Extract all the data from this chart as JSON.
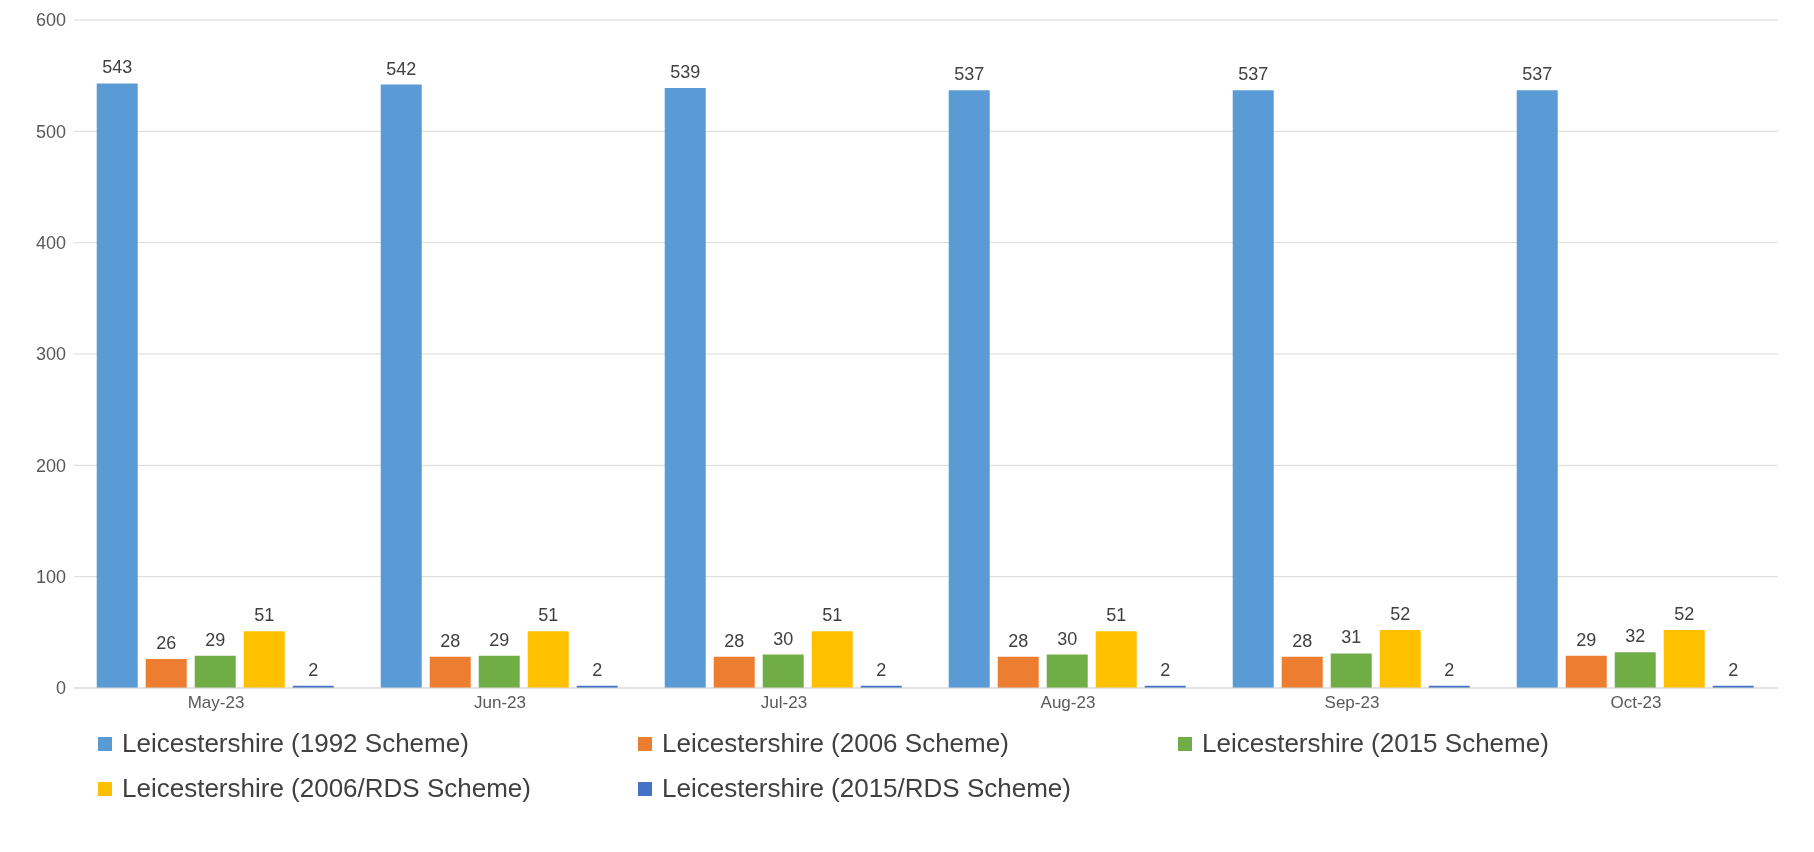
{
  "chart_data": {
    "type": "bar",
    "categories": [
      "May-23",
      "Jun-23",
      "Jul-23",
      "Aug-23",
      "Sep-23",
      "Oct-23"
    ],
    "series": [
      {
        "name": "Leicestershire (1992 Scheme)",
        "color": "#5b9bd5",
        "values": [
          543,
          542,
          539,
          537,
          537,
          537
        ]
      },
      {
        "name": "Leicestershire (2006 Scheme)",
        "color": "#ed7d31",
        "values": [
          26,
          28,
          28,
          28,
          28,
          29
        ]
      },
      {
        "name": "Leicestershire (2015 Scheme)",
        "color": "#70ad47",
        "values": [
          29,
          29,
          30,
          30,
          31,
          32
        ]
      },
      {
        "name": "Leicestershire (2006/RDS Scheme)",
        "color": "#ffc000",
        "values": [
          51,
          51,
          51,
          51,
          52,
          52
        ]
      },
      {
        "name": "Leicestershire (2015/RDS Scheme)",
        "color": "#4472c4",
        "values": [
          2,
          2,
          2,
          2,
          2,
          2
        ]
      }
    ],
    "ylim": [
      0,
      600
    ],
    "yticks": [
      0,
      100,
      200,
      300,
      400,
      500,
      600
    ],
    "grid": "y",
    "legend": "bottom",
    "data_labels": true
  }
}
